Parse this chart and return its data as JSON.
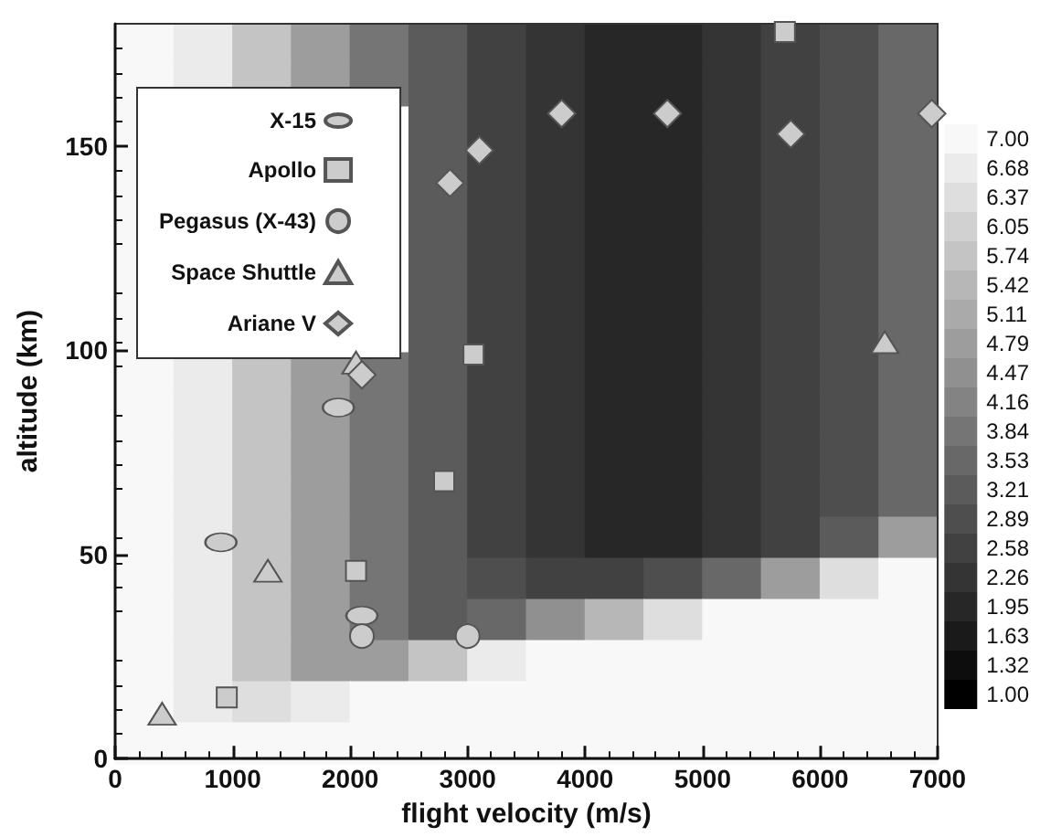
{
  "chart_data": [
    {
      "type": "heatmap",
      "categories": [
        null,
        null,
        null,
        null,
        null,
        null,
        null,
        null,
        null,
        null,
        null,
        null,
        null,
        null
      ],
      "y_categories": [
        null,
        null,
        null,
        null,
        null,
        null,
        null,
        null,
        null,
        null,
        null,
        null,
        null,
        null,
        null,
        null,
        null,
        null
      ],
      "cticks": [
        {
          "value": 1,
          "label": "1.00"
        },
        {
          "value": 1.32,
          "label": "1.32"
        },
        {
          "value": 1.63,
          "label": "1.63"
        },
        {
          "value": 1.95,
          "label": "1.95"
        },
        {
          "value": 2.26,
          "label": "2.26"
        },
        {
          "value": 2.58,
          "label": "2.58"
        },
        {
          "value": 2.89,
          "label": "2.89"
        },
        {
          "value": 3.21,
          "label": "3.21"
        },
        {
          "value": 3.53,
          "label": "3.53"
        },
        {
          "value": 3.84,
          "label": "3.84"
        },
        {
          "value": 4.16,
          "label": "4.16"
        },
        {
          "value": 4.47,
          "label": "4.47"
        },
        {
          "value": 4.79,
          "label": "4.79"
        },
        {
          "value": 5.11,
          "label": "5.11"
        },
        {
          "value": 5.42,
          "label": "5.42"
        },
        {
          "value": 5.74,
          "label": "5.74"
        },
        {
          "value": 6.05,
          "label": "6.05"
        },
        {
          "value": 6.37,
          "label": "6.37"
        },
        {
          "value": 6.68,
          "label": "6.68"
        },
        {
          "value": 7,
          "label": "7.00"
        }
      ],
      "cells": [
        [
          7,
          6.8,
          5.9,
          4.9,
          4.0,
          3.3,
          2.8,
          2.4,
          2.1,
          2.1,
          2.4,
          2.7,
          3.05,
          3.7
        ],
        [
          7,
          6.8,
          5.9,
          4.9,
          4.0,
          3.3,
          2.8,
          2.4,
          2.1,
          2.1,
          2.4,
          2.7,
          3.05,
          3.7
        ],
        [
          7,
          null,
          null,
          null,
          null,
          3.3,
          2.8,
          2.4,
          2.1,
          2.1,
          2.4,
          2.7,
          3.05,
          3.7
        ],
        [
          7,
          null,
          null,
          null,
          null,
          3.3,
          2.8,
          2.4,
          2.1,
          2.1,
          2.4,
          2.7,
          3.05,
          3.7
        ],
        [
          7,
          null,
          null,
          null,
          null,
          3.3,
          2.8,
          2.4,
          2.1,
          2.1,
          2.4,
          2.7,
          3.05,
          3.7
        ],
        [
          7,
          null,
          null,
          null,
          null,
          3.3,
          2.8,
          2.4,
          2.1,
          2.1,
          2.4,
          2.7,
          3.05,
          3.7
        ],
        [
          7,
          null,
          null,
          null,
          null,
          3.3,
          2.8,
          2.4,
          2.1,
          2.1,
          2.4,
          2.7,
          3.05,
          3.7
        ],
        [
          7,
          null,
          null,
          null,
          null,
          3.3,
          2.8,
          2.4,
          2.1,
          2.1,
          2.4,
          2.7,
          3.05,
          3.7
        ],
        [
          7,
          6.8,
          5.9,
          4.9,
          4.0,
          3.3,
          2.8,
          2.4,
          2.1,
          2.1,
          2.4,
          2.7,
          3.05,
          3.7
        ],
        [
          7,
          6.8,
          5.9,
          4.9,
          4.0,
          3.3,
          2.8,
          2.4,
          2.1,
          2.1,
          2.4,
          2.7,
          3.05,
          3.7
        ],
        [
          7,
          6.8,
          5.9,
          4.9,
          4.0,
          3.3,
          2.8,
          2.4,
          2.1,
          2.1,
          2.4,
          2.7,
          3.05,
          3.7
        ],
        [
          7,
          6.8,
          5.9,
          4.9,
          4.0,
          3.3,
          2.8,
          2.4,
          2.1,
          2.1,
          2.4,
          2.7,
          3.05,
          3.7
        ],
        [
          7,
          6.8,
          5.9,
          4.9,
          4.0,
          3.3,
          2.8,
          2.4,
          2.1,
          2.1,
          2.4,
          2.7,
          3.4,
          4.9
        ],
        [
          7,
          6.8,
          5.9,
          4.9,
          4.0,
          3.3,
          3.0,
          2.7,
          2.7,
          3.0,
          3.7,
          4.9,
          6.5,
          7
        ],
        [
          7,
          6.8,
          5.9,
          4.9,
          4.0,
          3.4,
          3.7,
          4.6,
          5.6,
          6.5,
          7,
          7,
          7,
          7
        ],
        [
          7,
          6.8,
          5.9,
          4.9,
          4.95,
          5.9,
          6.8,
          7,
          7,
          7,
          7,
          7,
          7,
          7
        ],
        [
          7,
          6.8,
          6.5,
          6.8,
          7,
          7,
          7,
          7,
          7,
          7,
          7,
          7,
          7,
          7
        ],
        [
          7,
          7,
          7,
          7,
          7,
          7,
          7,
          7,
          7,
          7,
          7,
          7,
          7,
          7
        ]
      ]
    },
    {
      "type": "scatter",
      "xlabel": "flight velocity (m/s)",
      "ylabel": "altitude (km)",
      "xlim": [
        0,
        7000
      ],
      "xticks": [
        0,
        1000,
        2000,
        3000,
        4000,
        5000,
        6000,
        7000
      ],
      "ylim": [
        0,
        180
      ],
      "yticks": [
        0,
        50,
        100,
        150
      ],
      "grid": false,
      "legend": "top left",
      "series": [
        {
          "name": "X-15",
          "color": "#cccccc",
          "x": [
            900,
            1900,
            2100
          ],
          "values": [
            53,
            86,
            35
          ]
        },
        {
          "name": "Apollo",
          "color": "#cccccc",
          "marker": "square",
          "x": [
            950,
            2050,
            2800,
            3050,
            5700
          ],
          "values": [
            15,
            46,
            68,
            99,
            178
          ]
        },
        {
          "name": "Pegasus (X-43)",
          "color": "#cccccc",
          "marker": "circle",
          "x": [
            2100,
            3000
          ],
          "values": [
            30,
            30
          ]
        },
        {
          "name": "Space Shuttle",
          "color": "#cccccc",
          "marker": "triangle",
          "x": [
            400,
            1300,
            2050,
            6550
          ],
          "values": [
            11,
            46,
            97,
            102
          ]
        },
        {
          "name": "Ariane V",
          "color": "#cccccc",
          "marker": "diamond",
          "x": [
            2100,
            2850,
            3100,
            3800,
            4700,
            5750,
            6950
          ],
          "values": [
            94,
            141,
            149,
            158,
            158,
            153,
            158
          ]
        }
      ]
    }
  ]
}
